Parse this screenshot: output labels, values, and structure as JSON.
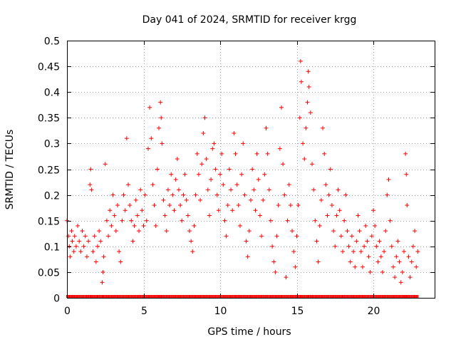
{
  "chart_data": {
    "type": "scatter",
    "title": "Day 041 of 2024, SRMTID for receiver krgg",
    "xlabel": "GPS time / hours",
    "ylabel": "SRMTID / TECUs",
    "xlim": [
      0,
      24
    ],
    "ylim": [
      0,
      0.5
    ],
    "xticks": [
      "0",
      "5",
      "10",
      "15",
      "20"
    ],
    "yticks": [
      "0",
      "0.05",
      "0.1",
      "0.15",
      "0.2",
      "0.25",
      "0.3",
      "0.35",
      "0.4",
      "0.45",
      "0.5"
    ],
    "grid": true,
    "marker": "+",
    "color": "#ff0000",
    "series": [
      {
        "name": "SRMTID",
        "points": [
          [
            0.0,
            0.15
          ],
          [
            0.1,
            0.12
          ],
          [
            0.15,
            0.1
          ],
          [
            0.2,
            0.08
          ],
          [
            0.3,
            0.13
          ],
          [
            0.35,
            0.11
          ],
          [
            0.45,
            0.09
          ],
          [
            0.5,
            0.12
          ],
          [
            0.6,
            0.1
          ],
          [
            0.7,
            0.14
          ],
          [
            0.8,
            0.11
          ],
          [
            0.9,
            0.09
          ],
          [
            1.0,
            0.13
          ],
          [
            1.1,
            0.1
          ],
          [
            1.2,
            0.12
          ],
          [
            1.3,
            0.08
          ],
          [
            1.4,
            0.11
          ],
          [
            1.5,
            0.22
          ],
          [
            1.55,
            0.25
          ],
          [
            1.6,
            0.21
          ],
          [
            1.7,
            0.09
          ],
          [
            1.8,
            0.12
          ],
          [
            1.9,
            0.07
          ],
          [
            2.0,
            0.1
          ],
          [
            2.1,
            0.13
          ],
          [
            2.2,
            0.11
          ],
          [
            2.3,
            0.03
          ],
          [
            2.35,
            0.05
          ],
          [
            2.4,
            0.08
          ],
          [
            2.5,
            0.26
          ],
          [
            2.6,
            0.15
          ],
          [
            2.7,
            0.12
          ],
          [
            2.8,
            0.17
          ],
          [
            2.9,
            0.14
          ],
          [
            3.0,
            0.2
          ],
          [
            3.1,
            0.16
          ],
          [
            3.2,
            0.13
          ],
          [
            3.3,
            0.18
          ],
          [
            3.4,
            0.09
          ],
          [
            3.5,
            0.07
          ],
          [
            3.6,
            0.15
          ],
          [
            3.7,
            0.2
          ],
          [
            3.8,
            0.17
          ],
          [
            3.9,
            0.31
          ],
          [
            4.0,
            0.22
          ],
          [
            4.1,
            0.18
          ],
          [
            4.2,
            0.15
          ],
          [
            4.3,
            0.11
          ],
          [
            4.4,
            0.14
          ],
          [
            4.5,
            0.19
          ],
          [
            4.6,
            0.16
          ],
          [
            4.7,
            0.13
          ],
          [
            4.8,
            0.21
          ],
          [
            4.9,
            0.17
          ],
          [
            5.0,
            0.14
          ],
          [
            5.1,
            0.2
          ],
          [
            5.2,
            0.15
          ],
          [
            5.3,
            0.29
          ],
          [
            5.4,
            0.37
          ],
          [
            5.5,
            0.31
          ],
          [
            5.6,
            0.22
          ],
          [
            5.7,
            0.18
          ],
          [
            5.8,
            0.14
          ],
          [
            5.9,
            0.25
          ],
          [
            6.0,
            0.33
          ],
          [
            6.1,
            0.38
          ],
          [
            6.15,
            0.35
          ],
          [
            6.2,
            0.3
          ],
          [
            6.3,
            0.19
          ],
          [
            6.4,
            0.16
          ],
          [
            6.5,
            0.13
          ],
          [
            6.6,
            0.21
          ],
          [
            6.7,
            0.18
          ],
          [
            6.8,
            0.24
          ],
          [
            6.9,
            0.2
          ],
          [
            7.0,
            0.17
          ],
          [
            7.1,
            0.23
          ],
          [
            7.2,
            0.27
          ],
          [
            7.3,
            0.21
          ],
          [
            7.4,
            0.18
          ],
          [
            7.5,
            0.15
          ],
          [
            7.6,
            0.2
          ],
          [
            7.7,
            0.24
          ],
          [
            7.8,
            0.19
          ],
          [
            7.9,
            0.16
          ],
          [
            8.0,
            0.13
          ],
          [
            8.1,
            0.11
          ],
          [
            8.2,
            0.09
          ],
          [
            8.3,
            0.14
          ],
          [
            8.4,
            0.2
          ],
          [
            8.5,
            0.28
          ],
          [
            8.6,
            0.24
          ],
          [
            8.7,
            0.19
          ],
          [
            8.8,
            0.26
          ],
          [
            8.9,
            0.32
          ],
          [
            9.0,
            0.35
          ],
          [
            9.1,
            0.27
          ],
          [
            9.2,
            0.21
          ],
          [
            9.3,
            0.16
          ],
          [
            9.4,
            0.23
          ],
          [
            9.5,
            0.29
          ],
          [
            9.6,
            0.3
          ],
          [
            9.7,
            0.25
          ],
          [
            9.8,
            0.2
          ],
          [
            9.9,
            0.17
          ],
          [
            10.0,
            0.24
          ],
          [
            10.1,
            0.28
          ],
          [
            10.2,
            0.22
          ],
          [
            10.3,
            0.15
          ],
          [
            10.4,
            0.12
          ],
          [
            10.5,
            0.18
          ],
          [
            10.6,
            0.25
          ],
          [
            10.7,
            0.21
          ],
          [
            10.8,
            0.17
          ],
          [
            10.9,
            0.32
          ],
          [
            11.0,
            0.28
          ],
          [
            11.1,
            0.22
          ],
          [
            11.2,
            0.18
          ],
          [
            11.3,
            0.14
          ],
          [
            11.4,
            0.24
          ],
          [
            11.5,
            0.3
          ],
          [
            11.6,
            0.2
          ],
          [
            11.7,
            0.11
          ],
          [
            11.8,
            0.08
          ],
          [
            11.9,
            0.13
          ],
          [
            12.0,
            0.19
          ],
          [
            12.1,
            0.25
          ],
          [
            12.2,
            0.21
          ],
          [
            12.3,
            0.17
          ],
          [
            12.4,
            0.28
          ],
          [
            12.5,
            0.23
          ],
          [
            12.6,
            0.16
          ],
          [
            12.7,
            0.12
          ],
          [
            12.8,
            0.19
          ],
          [
            12.9,
            0.24
          ],
          [
            13.0,
            0.33
          ],
          [
            13.1,
            0.28
          ],
          [
            13.2,
            0.21
          ],
          [
            13.3,
            0.15
          ],
          [
            13.4,
            0.1
          ],
          [
            13.5,
            0.07
          ],
          [
            13.6,
            0.05
          ],
          [
            13.7,
            0.12
          ],
          [
            13.8,
            0.18
          ],
          [
            13.9,
            0.29
          ],
          [
            14.0,
            0.37
          ],
          [
            14.1,
            0.26
          ],
          [
            14.2,
            0.2
          ],
          [
            14.3,
            0.04
          ],
          [
            14.4,
            0.15
          ],
          [
            14.5,
            0.22
          ],
          [
            14.6,
            0.18
          ],
          [
            14.7,
            0.13
          ],
          [
            14.8,
            0.09
          ],
          [
            14.9,
            0.06
          ],
          [
            15.0,
            0.12
          ],
          [
            15.1,
            0.18
          ],
          [
            15.2,
            0.35
          ],
          [
            15.25,
            0.46
          ],
          [
            15.3,
            0.42
          ],
          [
            15.4,
            0.3
          ],
          [
            15.5,
            0.27
          ],
          [
            15.6,
            0.33
          ],
          [
            15.7,
            0.38
          ],
          [
            15.75,
            0.44
          ],
          [
            15.8,
            0.41
          ],
          [
            15.9,
            0.36
          ],
          [
            16.0,
            0.26
          ],
          [
            16.1,
            0.21
          ],
          [
            16.2,
            0.15
          ],
          [
            16.3,
            0.11
          ],
          [
            16.4,
            0.07
          ],
          [
            16.5,
            0.14
          ],
          [
            16.6,
            0.19
          ],
          [
            16.7,
            0.33
          ],
          [
            16.8,
            0.28
          ],
          [
            16.9,
            0.22
          ],
          [
            17.0,
            0.16
          ],
          [
            17.1,
            0.2
          ],
          [
            17.2,
            0.25
          ],
          [
            17.3,
            0.18
          ],
          [
            17.4,
            0.13
          ],
          [
            17.5,
            0.1
          ],
          [
            17.6,
            0.16
          ],
          [
            17.7,
            0.21
          ],
          [
            17.8,
            0.17
          ],
          [
            17.9,
            0.12
          ],
          [
            18.0,
            0.09
          ],
          [
            18.1,
            0.15
          ],
          [
            18.2,
            0.2
          ],
          [
            18.3,
            0.13
          ],
          [
            18.4,
            0.1
          ],
          [
            18.5,
            0.07
          ],
          [
            18.6,
            0.12
          ],
          [
            18.7,
            0.09
          ],
          [
            18.8,
            0.06
          ],
          [
            18.9,
            0.11
          ],
          [
            19.0,
            0.16
          ],
          [
            19.1,
            0.13
          ],
          [
            19.2,
            0.09
          ],
          [
            19.3,
            0.06
          ],
          [
            19.4,
            0.1
          ],
          [
            19.5,
            0.14
          ],
          [
            19.6,
            0.11
          ],
          [
            19.7,
            0.08
          ],
          [
            19.8,
            0.05
          ],
          [
            19.9,
            0.12
          ],
          [
            20.0,
            0.17
          ],
          [
            20.1,
            0.14
          ],
          [
            20.2,
            0.1
          ],
          [
            20.3,
            0.07
          ],
          [
            20.4,
            0.11
          ],
          [
            20.5,
            0.08
          ],
          [
            20.6,
            0.05
          ],
          [
            20.7,
            0.09
          ],
          [
            20.8,
            0.13
          ],
          [
            20.9,
            0.2
          ],
          [
            21.0,
            0.23
          ],
          [
            21.1,
            0.15
          ],
          [
            21.2,
            0.1
          ],
          [
            21.3,
            0.06
          ],
          [
            21.4,
            0.04
          ],
          [
            21.5,
            0.08
          ],
          [
            21.6,
            0.11
          ],
          [
            21.7,
            0.07
          ],
          [
            21.8,
            0.03
          ],
          [
            21.9,
            0.05
          ],
          [
            22.0,
            0.09
          ],
          [
            22.1,
            0.28
          ],
          [
            22.15,
            0.24
          ],
          [
            22.2,
            0.18
          ],
          [
            22.3,
            0.08
          ],
          [
            22.4,
            0.04
          ],
          [
            22.5,
            0.07
          ],
          [
            22.6,
            0.1
          ],
          [
            22.7,
            0.13
          ],
          [
            22.8,
            0.06
          ],
          [
            22.9,
            0.09
          ]
        ]
      }
    ]
  }
}
